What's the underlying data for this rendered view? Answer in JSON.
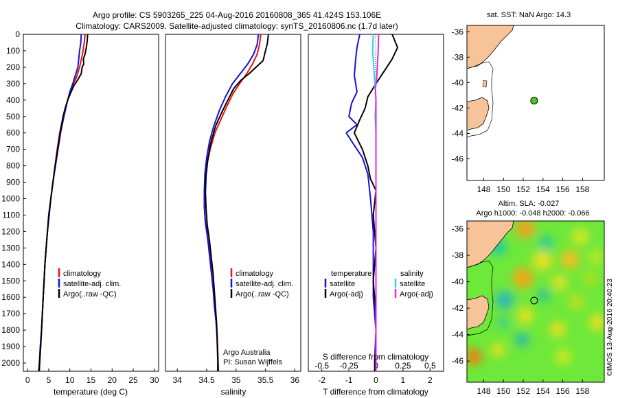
{
  "title_line1": "Argo profile: CS 5903265_225 04-Aug-2016 20160808_365 41.424S 153.106E",
  "title_line2": "Climatology: CARS2009. Satellite-adjusted climatology: synTS_20160806.nc (1.7d later)",
  "credit_line1": "Argo Australia",
  "credit_line2": "PI: Susan Wijffels",
  "copyright": "©IMOS 13-Aug-2016 20:40:23",
  "colors": {
    "climatology": "#ee1111",
    "satellite": "#1111dd",
    "argo": "#000000",
    "sal_satellite": "#22dddd",
    "sal_argo": "#ee22ee",
    "land": "#f7c49a",
    "sla_bg": "#7cf233"
  },
  "chart_data": [
    {
      "type": "line",
      "id": "temperature",
      "xlabel": "temperature (deg C)",
      "xlim": [
        -1,
        31
      ],
      "ylim": [
        2050,
        0
      ],
      "xticks": [
        "0",
        "5",
        "10",
        "15",
        "20",
        "25",
        "30"
      ],
      "yticks": [
        "0",
        "100",
        "200",
        "300",
        "400",
        "500",
        "600",
        "700",
        "800",
        "900",
        "1000",
        "1100",
        "1200",
        "1300",
        "1400",
        "1500",
        "1600",
        "1700",
        "1800",
        "1900",
        "2000"
      ],
      "legend": [
        "climatology",
        "satellite-adj. clim.",
        "Argo(..raw -QC)"
      ],
      "series": [
        {
          "name": "climatology",
          "color": "#ee1111",
          "points": [
            [
              13.6,
              0
            ],
            [
              13.4,
              50
            ],
            [
              13.0,
              120
            ],
            [
              12.3,
              200
            ],
            [
              11.6,
              260
            ],
            [
              10.5,
              320
            ],
            [
              9.5,
              400
            ],
            [
              8.4,
              500
            ],
            [
              7.6,
              600
            ],
            [
              7.0,
              700
            ],
            [
              6.5,
              800
            ],
            [
              6.0,
              900
            ],
            [
              5.5,
              1000
            ],
            [
              5.1,
              1100
            ],
            [
              4.7,
              1200
            ],
            [
              4.4,
              1300
            ],
            [
              4.1,
              1400
            ],
            [
              3.9,
              1500
            ],
            [
              3.7,
              1600
            ],
            [
              3.5,
              1700
            ],
            [
              3.3,
              1800
            ],
            [
              3.1,
              1900
            ],
            [
              2.9,
              2000
            ],
            [
              2.8,
              2050
            ]
          ]
        },
        {
          "name": "satellite-adj. clim.",
          "color": "#1111dd",
          "points": [
            [
              12.7,
              0
            ],
            [
              12.6,
              50
            ],
            [
              12.3,
              100
            ],
            [
              11.9,
              200
            ],
            [
              11.3,
              250
            ],
            [
              10.7,
              300
            ],
            [
              10.0,
              350
            ],
            [
              9.3,
              420
            ],
            [
              8.6,
              500
            ],
            [
              7.8,
              600
            ],
            [
              7.2,
              700
            ],
            [
              6.6,
              800
            ],
            [
              6.0,
              900
            ],
            [
              5.5,
              1000
            ],
            [
              5.1,
              1100
            ],
            [
              4.7,
              1200
            ],
            [
              4.4,
              1300
            ],
            [
              4.1,
              1400
            ],
            [
              3.9,
              1500
            ],
            [
              3.7,
              1600
            ],
            [
              3.5,
              1700
            ],
            [
              3.3,
              1800
            ],
            [
              3.0,
              1900
            ],
            [
              2.8,
              2000
            ],
            [
              2.6,
              2050
            ]
          ]
        },
        {
          "name": "Argo(..raw -QC)",
          "color": "#000000",
          "points": [
            [
              14.2,
              0
            ],
            [
              14.1,
              40
            ],
            [
              13.9,
              80
            ],
            [
              13.6,
              120
            ],
            [
              13.2,
              150
            ],
            [
              13.3,
              180
            ],
            [
              12.9,
              200
            ],
            [
              12.7,
              240
            ],
            [
              11.8,
              280
            ],
            [
              11.0,
              310
            ],
            [
              10.3,
              350
            ],
            [
              9.5,
              400
            ],
            [
              8.9,
              450
            ],
            [
              8.4,
              500
            ],
            [
              7.7,
              600
            ],
            [
              7.1,
              700
            ],
            [
              6.5,
              800
            ],
            [
              6.0,
              900
            ],
            [
              5.5,
              1000
            ],
            [
              5.0,
              1100
            ],
            [
              4.7,
              1200
            ],
            [
              4.4,
              1300
            ],
            [
              4.1,
              1400
            ],
            [
              3.9,
              1500
            ],
            [
              3.7,
              1600
            ],
            [
              3.5,
              1700
            ],
            [
              3.3,
              1800
            ],
            [
              3.1,
              1900
            ],
            [
              2.8,
              2000
            ],
            [
              2.7,
              2050
            ]
          ]
        }
      ]
    },
    {
      "type": "line",
      "id": "salinity",
      "xlabel": "salinity",
      "xlim": [
        33.8,
        36.1
      ],
      "ylim": [
        2050,
        0
      ],
      "xticks": [
        "34",
        "34.5",
        "35",
        "35.5",
        "36"
      ],
      "legend": [
        "climatology",
        "satellite-adj. clim.",
        "Argo(..raw -QC)"
      ],
      "series": [
        {
          "name": "climatology",
          "color": "#ee1111",
          "points": [
            [
              35.42,
              0
            ],
            [
              35.4,
              60
            ],
            [
              35.36,
              120
            ],
            [
              35.28,
              180
            ],
            [
              35.18,
              240
            ],
            [
              35.06,
              300
            ],
            [
              34.95,
              360
            ],
            [
              34.84,
              440
            ],
            [
              34.74,
              520
            ],
            [
              34.64,
              600
            ],
            [
              34.56,
              700
            ],
            [
              34.5,
              800
            ],
            [
              34.47,
              900
            ],
            [
              34.46,
              1000
            ],
            [
              34.47,
              1100
            ],
            [
              34.5,
              1200
            ],
            [
              34.54,
              1300
            ],
            [
              34.57,
              1400
            ],
            [
              34.6,
              1500
            ],
            [
              34.63,
              1600
            ],
            [
              34.65,
              1700
            ],
            [
              34.67,
              1800
            ],
            [
              34.68,
              1900
            ],
            [
              34.69,
              2000
            ],
            [
              34.69,
              2050
            ]
          ]
        },
        {
          "name": "satellite-adj. clim.",
          "color": "#1111dd",
          "points": [
            [
              35.38,
              0
            ],
            [
              35.36,
              60
            ],
            [
              35.3,
              120
            ],
            [
              35.2,
              180
            ],
            [
              35.07,
              240
            ],
            [
              34.94,
              300
            ],
            [
              34.82,
              380
            ],
            [
              34.72,
              460
            ],
            [
              34.62,
              560
            ],
            [
              34.55,
              650
            ],
            [
              34.5,
              750
            ],
            [
              34.47,
              850
            ],
            [
              34.46,
              950
            ],
            [
              34.46,
              1050
            ],
            [
              34.48,
              1150
            ],
            [
              34.52,
              1250
            ],
            [
              34.55,
              1350
            ],
            [
              34.58,
              1450
            ],
            [
              34.61,
              1550
            ],
            [
              34.63,
              1650
            ],
            [
              34.66,
              1750
            ],
            [
              34.68,
              1850
            ],
            [
              34.69,
              1950
            ],
            [
              34.7,
              2050
            ]
          ]
        },
        {
          "name": "Argo(..raw -QC)",
          "color": "#000000",
          "points": [
            [
              35.55,
              0
            ],
            [
              35.53,
              60
            ],
            [
              35.5,
              100
            ],
            [
              35.46,
              160
            ],
            [
              35.34,
              200
            ],
            [
              35.22,
              240
            ],
            [
              35.08,
              280
            ],
            [
              34.96,
              330
            ],
            [
              34.86,
              400
            ],
            [
              34.75,
              480
            ],
            [
              34.65,
              560
            ],
            [
              34.57,
              660
            ],
            [
              34.52,
              760
            ],
            [
              34.49,
              860
            ],
            [
              34.48,
              960
            ],
            [
              34.49,
              1060
            ],
            [
              34.51,
              1160
            ],
            [
              34.55,
              1260
            ],
            [
              34.58,
              1360
            ],
            [
              34.61,
              1460
            ],
            [
              34.63,
              1560
            ],
            [
              34.65,
              1660
            ],
            [
              34.67,
              1760
            ],
            [
              34.68,
              1860
            ],
            [
              34.69,
              1960
            ],
            [
              34.69,
              2050
            ]
          ]
        }
      ]
    },
    {
      "type": "line",
      "id": "differences",
      "xlabel": "T difference from climatology",
      "xlabel_top": "S difference from climatology",
      "xlim": [
        -2.5,
        2.5
      ],
      "ylim": [
        2050,
        0
      ],
      "xticks": [
        "-2",
        "-1",
        "0",
        "1",
        "2"
      ],
      "sticks": [
        "-0.5",
        "-0.25",
        "0",
        "0.25",
        "0.5"
      ],
      "legend_temperature": "temperature",
      "legend_salinity": "salinity",
      "legend_items": [
        "satellite",
        "Argo(-adj)",
        "satellite",
        "Argo(-adj)"
      ],
      "series": [
        {
          "name": "T satellite",
          "color": "#1111dd",
          "points": [
            [
              -0.6,
              0
            ],
            [
              -0.7,
              80
            ],
            [
              -0.75,
              150
            ],
            [
              -0.8,
              250
            ],
            [
              -0.7,
              350
            ],
            [
              -0.9,
              420
            ],
            [
              -1.0,
              500
            ],
            [
              -0.7,
              550
            ],
            [
              -1.1,
              600
            ],
            [
              -0.9,
              650
            ],
            [
              -0.5,
              750
            ],
            [
              -0.3,
              850
            ],
            [
              -0.2,
              1000
            ],
            [
              -0.1,
              1200
            ],
            [
              -0.1,
              1400
            ],
            [
              -0.1,
              1600
            ],
            [
              0.0,
              1800
            ],
            [
              -0.05,
              2000
            ],
            [
              0.0,
              2050
            ]
          ]
        },
        {
          "name": "T Argo(-adj)",
          "color": "#000000",
          "points": [
            [
              0.6,
              0
            ],
            [
              0.8,
              80
            ],
            [
              0.6,
              150
            ],
            [
              0.4,
              200
            ],
            [
              0.0,
              300
            ],
            [
              -0.3,
              380
            ],
            [
              -0.4,
              450
            ],
            [
              -0.6,
              520
            ],
            [
              -0.8,
              600
            ],
            [
              -0.5,
              700
            ],
            [
              -0.3,
              800
            ],
            [
              -0.2,
              880
            ],
            [
              0.0,
              950
            ],
            [
              -0.1,
              1100
            ],
            [
              0.0,
              1300
            ],
            [
              -0.1,
              1500
            ],
            [
              0.0,
              1700
            ],
            [
              0.0,
              1900
            ],
            [
              -0.05,
              2050
            ]
          ]
        },
        {
          "name": "S satellite",
          "color": "#22dddd",
          "points": [
            [
              -0.1,
              0
            ],
            [
              -0.12,
              100
            ],
            [
              -0.08,
              200
            ],
            [
              -0.04,
              300
            ],
            [
              0.0,
              400
            ],
            [
              -0.03,
              500
            ],
            [
              0.0,
              600
            ],
            [
              0.0,
              800
            ],
            [
              0.0,
              1000
            ],
            [
              0.0,
              1300
            ],
            [
              0.0,
              1600
            ],
            [
              0.0,
              2050
            ]
          ]
        },
        {
          "name": "S Argo(-adj)",
          "color": "#ee22ee",
          "points": [
            [
              0.1,
              0
            ],
            [
              0.08,
              100
            ],
            [
              0.05,
              200
            ],
            [
              0.02,
              280
            ],
            [
              -0.02,
              330
            ],
            [
              0.0,
              400
            ],
            [
              0.0,
              550
            ],
            [
              0.0,
              700
            ],
            [
              0.0,
              900
            ],
            [
              0.0,
              1200
            ],
            [
              0.0,
              1500
            ],
            [
              0.0,
              1800
            ],
            [
              0.0,
              2050
            ]
          ]
        }
      ]
    }
  ],
  "map1": {
    "title": "sat. SST: NaN Argo: 14.3",
    "xticks": [
      "148",
      "150",
      "152",
      "154",
      "156",
      "158"
    ],
    "yticks": [
      "-36",
      "-38",
      "-40",
      "-42",
      "-44",
      "-46"
    ],
    "profile": {
      "lon": 153.106,
      "lat": -41.424
    }
  },
  "map2": {
    "title1": "Altim. SLA: -0.027",
    "title2": "Argo h1000: -0.048 h2000: -0.066",
    "xticks": [
      "148",
      "150",
      "152",
      "154",
      "156",
      "158"
    ],
    "yticks": [
      "-36",
      "-38",
      "-40",
      "-42",
      "-44",
      "-46"
    ],
    "profile": {
      "lon": 153.106,
      "lat": -41.424
    }
  }
}
